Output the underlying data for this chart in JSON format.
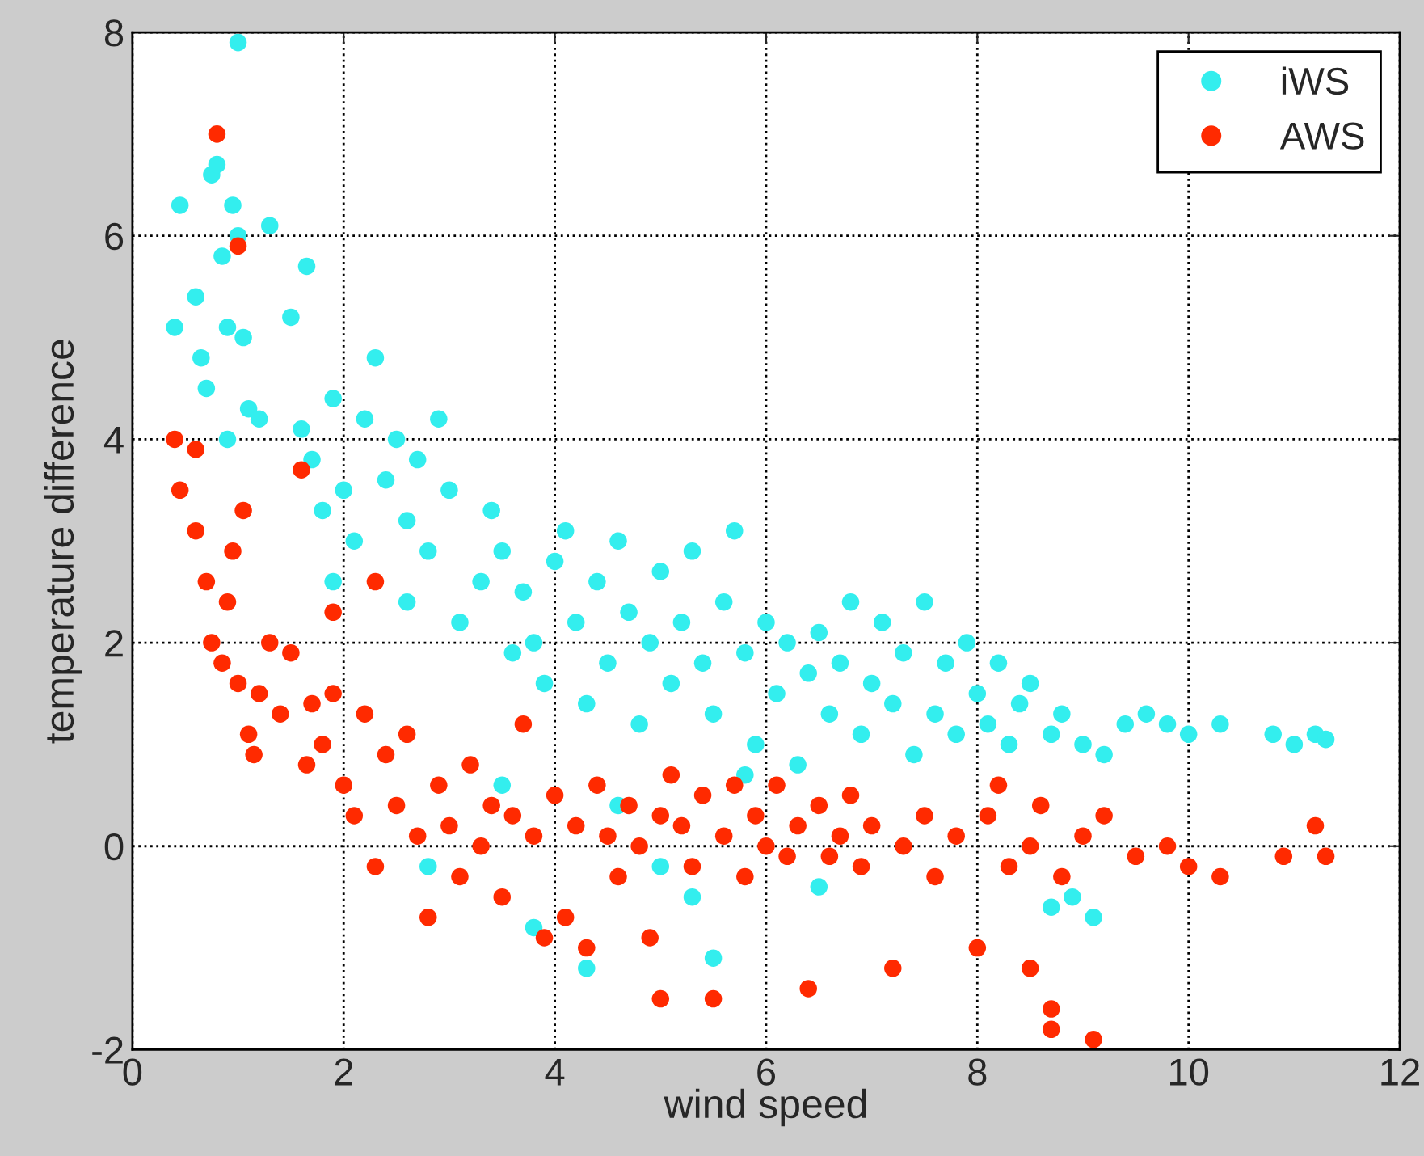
{
  "chart_data": {
    "type": "scatter",
    "xlabel": "wind speed",
    "ylabel": "temperature difference",
    "xlim": [
      0,
      12
    ],
    "ylim": [
      -2,
      8
    ],
    "xticks": [
      0,
      2,
      4,
      6,
      8,
      10,
      12
    ],
    "yticks": [
      -2,
      0,
      2,
      4,
      6,
      8
    ],
    "grid": true,
    "legend": "top right",
    "marker": "circle",
    "series": [
      {
        "name": "iWS",
        "color": "#33eeee",
        "x": [
          0.4,
          0.45,
          0.6,
          0.65,
          0.7,
          0.75,
          0.8,
          0.85,
          0.9,
          0.95,
          1.0,
          1.0,
          1.05,
          1.1,
          0.9,
          1.2,
          1.3,
          1.5,
          1.6,
          1.65,
          1.7,
          1.8,
          1.9,
          2.0,
          2.1,
          2.2,
          2.3,
          2.4,
          2.5,
          2.6,
          2.7,
          2.8,
          2.9,
          3.0,
          1.9,
          2.6,
          3.1,
          3.3,
          3.4,
          3.5,
          3.6,
          3.7,
          3.8,
          3.9,
          4.0,
          4.1,
          4.2,
          4.3,
          4.4,
          4.5,
          4.6,
          4.7,
          4.8,
          4.9,
          5.0,
          5.1,
          5.2,
          5.3,
          5.4,
          5.5,
          5.6,
          5.7,
          5.8,
          5.9,
          6.0,
          6.1,
          6.2,
          6.3,
          6.4,
          6.5,
          6.6,
          6.7,
          6.8,
          6.9,
          7.0,
          7.1,
          7.2,
          7.3,
          7.4,
          7.5,
          7.6,
          7.7,
          7.8,
          7.9,
          8.0,
          8.1,
          8.2,
          8.3,
          8.4,
          8.5,
          8.7,
          8.8,
          9.0,
          9.2,
          9.4,
          9.6,
          9.8,
          10.0,
          10.3,
          10.8,
          11.0,
          11.2,
          11.3,
          2.8,
          3.8,
          4.3,
          5.0,
          5.5,
          5.3,
          6.5,
          8.7,
          8.9,
          9.1,
          3.5,
          4.6,
          5.8
        ],
        "values": [
          5.1,
          6.3,
          5.4,
          4.8,
          4.5,
          6.6,
          6.7,
          5.8,
          5.1,
          6.3,
          7.9,
          6.0,
          5.0,
          4.3,
          4.0,
          4.2,
          6.1,
          5.2,
          4.1,
          5.7,
          3.8,
          3.3,
          4.4,
          3.5,
          3.0,
          4.2,
          4.8,
          3.6,
          4.0,
          3.2,
          3.8,
          2.9,
          4.2,
          3.5,
          2.6,
          2.4,
          2.2,
          2.6,
          3.3,
          2.9,
          1.9,
          2.5,
          2.0,
          1.6,
          2.8,
          3.1,
          2.2,
          1.4,
          2.6,
          1.8,
          3.0,
          2.3,
          1.2,
          2.0,
          2.7,
          1.6,
          2.2,
          2.9,
          1.8,
          1.3,
          2.4,
          3.1,
          1.9,
          1.0,
          2.2,
          1.5,
          2.0,
          0.8,
          1.7,
          2.1,
          1.3,
          1.8,
          2.4,
          1.1,
          1.6,
          2.2,
          1.4,
          1.9,
          0.9,
          2.4,
          1.3,
          1.8,
          1.1,
          2.0,
          1.5,
          1.2,
          1.8,
          1.0,
          1.4,
          1.6,
          1.1,
          1.3,
          1.0,
          0.9,
          1.2,
          1.3,
          1.2,
          1.1,
          1.2,
          1.1,
          1.0,
          1.1,
          1.05,
          -0.2,
          -0.8,
          -1.2,
          -0.2,
          -1.1,
          -0.5,
          -0.4,
          -0.6,
          -0.5,
          -0.7,
          0.6,
          0.4,
          0.7
        ]
      },
      {
        "name": "AWS",
        "color": "#ff2a00",
        "x": [
          0.4,
          0.45,
          0.6,
          0.6,
          0.7,
          0.75,
          0.8,
          0.85,
          0.9,
          0.95,
          1.0,
          1.0,
          1.05,
          1.1,
          1.15,
          1.2,
          1.3,
          1.4,
          1.5,
          1.6,
          1.65,
          1.7,
          1.8,
          1.9,
          1.9,
          2.0,
          2.1,
          2.2,
          2.3,
          2.3,
          2.4,
          2.5,
          2.6,
          2.7,
          2.8,
          2.9,
          3.0,
          3.1,
          3.2,
          3.3,
          3.4,
          3.5,
          3.6,
          3.7,
          3.8,
          3.9,
          4.0,
          4.1,
          4.2,
          4.3,
          4.4,
          4.5,
          4.6,
          4.7,
          4.8,
          4.9,
          5.0,
          5.0,
          5.1,
          5.2,
          5.3,
          5.4,
          5.5,
          5.6,
          5.7,
          5.8,
          5.9,
          6.0,
          6.1,
          6.2,
          6.3,
          6.4,
          6.5,
          6.6,
          6.7,
          6.8,
          6.9,
          7.0,
          7.2,
          7.3,
          7.5,
          7.6,
          7.8,
          8.0,
          8.1,
          8.2,
          8.3,
          8.5,
          8.5,
          8.6,
          8.7,
          8.7,
          8.8,
          9.0,
          9.1,
          9.2,
          9.5,
          9.8,
          10.0,
          10.3,
          10.9,
          11.2,
          11.3
        ],
        "values": [
          4.0,
          3.5,
          3.1,
          3.9,
          2.6,
          2.0,
          7.0,
          1.8,
          2.4,
          2.9,
          5.9,
          1.6,
          3.3,
          1.1,
          0.9,
          1.5,
          2.0,
          1.3,
          1.9,
          3.7,
          0.8,
          1.4,
          1.0,
          1.5,
          2.3,
          0.6,
          0.3,
          1.3,
          2.6,
          -0.2,
          0.9,
          0.4,
          1.1,
          0.1,
          -0.7,
          0.6,
          0.2,
          -0.3,
          0.8,
          0.0,
          0.4,
          -0.5,
          0.3,
          1.2,
          0.1,
          -0.9,
          0.5,
          -0.7,
          0.2,
          -1.0,
          0.6,
          0.1,
          -0.3,
          0.4,
          0.0,
          -0.9,
          0.3,
          -1.5,
          0.7,
          0.2,
          -0.2,
          0.5,
          -1.5,
          0.1,
          0.6,
          -0.3,
          0.3,
          0.0,
          0.6,
          -0.1,
          0.2,
          -1.4,
          0.4,
          -0.1,
          0.1,
          0.5,
          -0.2,
          0.2,
          -1.2,
          0.0,
          0.3,
          -0.3,
          0.1,
          -1.0,
          0.3,
          0.6,
          -0.2,
          0.0,
          -1.2,
          0.4,
          -1.6,
          -1.8,
          -0.3,
          0.1,
          -1.9,
          0.3,
          -0.1,
          0.0,
          -0.2,
          -0.3,
          -0.1,
          0.2,
          -0.1
        ]
      }
    ]
  }
}
